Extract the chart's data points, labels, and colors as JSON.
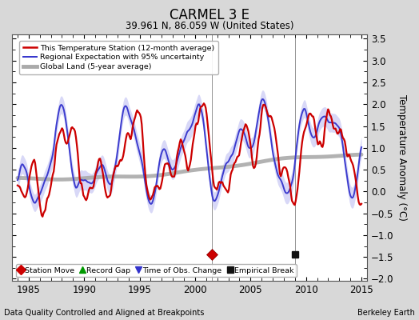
{
  "title": "CARMEL 3 E",
  "subtitle": "39.961 N, 86.059 W (United States)",
  "ylabel": "Temperature Anomaly (°C)",
  "xlabel_note": "Data Quality Controlled and Aligned at Breakpoints",
  "credit": "Berkeley Earth",
  "xlim": [
    1983.5,
    2015.5
  ],
  "ylim": [
    -2.05,
    3.6
  ],
  "yticks": [
    -2,
    -1.5,
    -1,
    -0.5,
    0,
    0.5,
    1,
    1.5,
    2,
    2.5,
    3,
    3.5
  ],
  "xticks": [
    1985,
    1990,
    1995,
    2000,
    2005,
    2010,
    2015
  ],
  "legend_entries": [
    {
      "label": "This Temperature Station (12-month average)",
      "color": "#cc0000",
      "lw": 1.8
    },
    {
      "label": "Regional Expectation with 95% uncertainty",
      "color": "#3333cc",
      "lw": 1.5
    },
    {
      "label": "Global Land (5-year average)",
      "color": "#aaaaaa",
      "lw": 3.5
    }
  ],
  "marker_legend": [
    {
      "label": "Station Move",
      "color": "#cc0000",
      "marker": "D"
    },
    {
      "label": "Record Gap",
      "color": "#009900",
      "marker": "^"
    },
    {
      "label": "Time of Obs. Change",
      "color": "#3333cc",
      "marker": "v"
    },
    {
      "label": "Empirical Break",
      "color": "#000000",
      "marker": "s"
    }
  ],
  "background_color": "#d8d8d8",
  "plot_bg_color": "#ffffff",
  "vline_color": "#888888",
  "vline_x1": 2001.5,
  "vline_x2": 2009.0,
  "station_move_x": 2001.5,
  "station_move_y": -1.45,
  "empirical_break_x": 2009.0,
  "empirical_break_y": -1.45
}
